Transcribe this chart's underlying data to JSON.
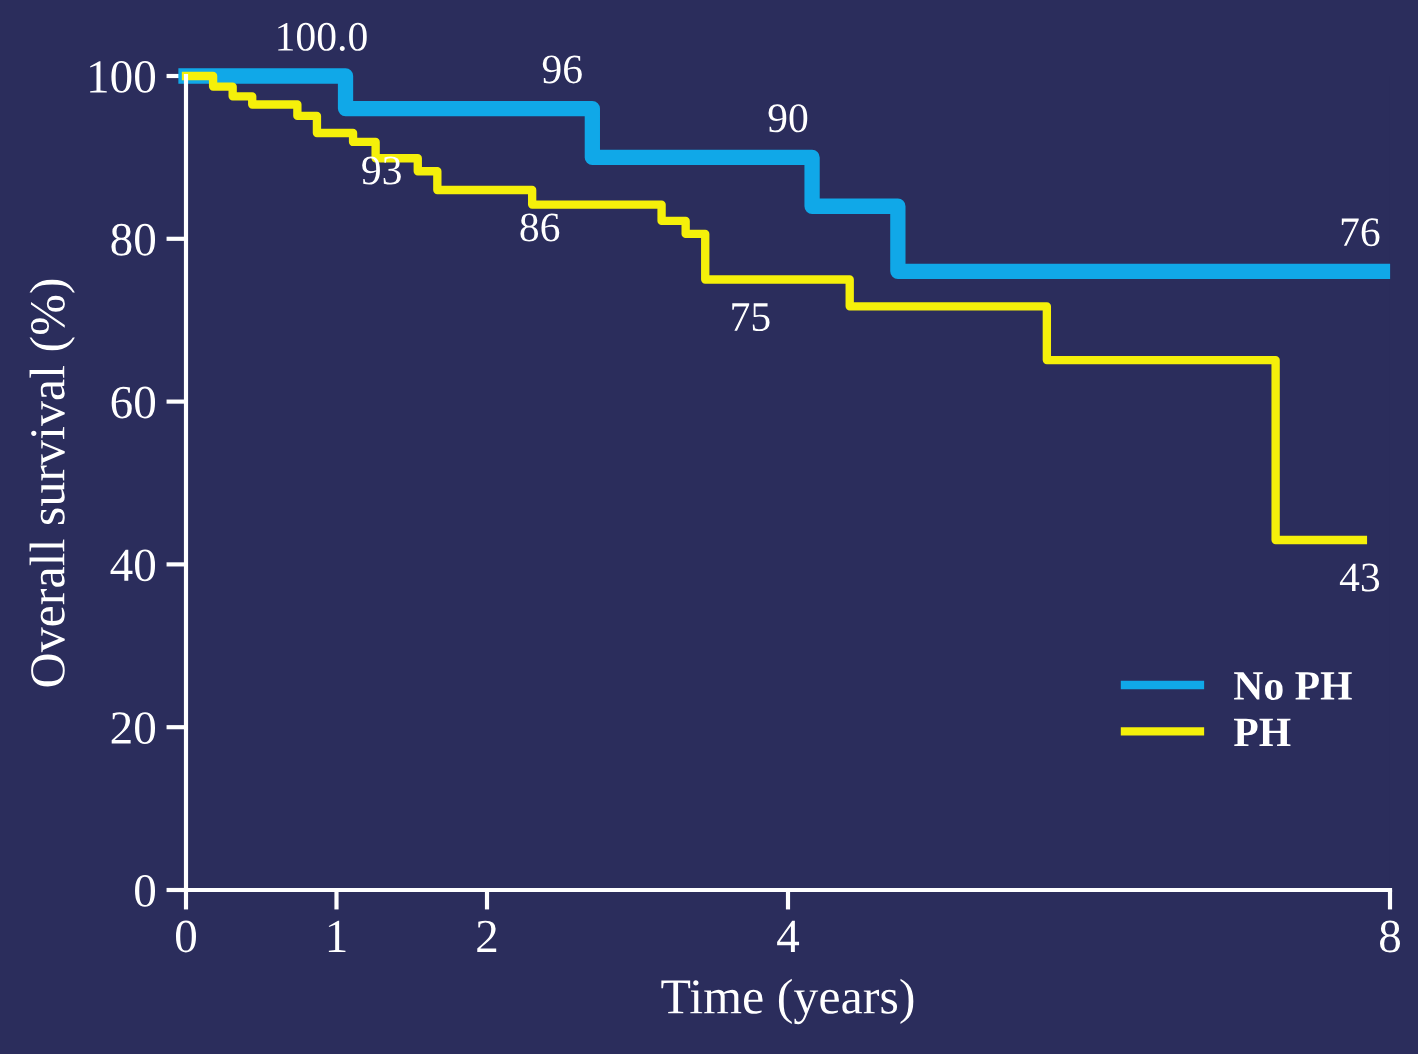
{
  "chart_data": {
    "type": "step",
    "xlabel": "Time (years)",
    "ylabel": "Overall survival (%)",
    "xlim": [
      0,
      8
    ],
    "xticks": [
      0,
      1,
      2,
      4,
      8
    ],
    "ylim": [
      0,
      100
    ],
    "yticks": [
      0,
      20,
      40,
      60,
      80,
      100
    ],
    "grid": false,
    "legend": "bottom right",
    "marker": "none",
    "line_style": "solid",
    "series": [
      {
        "name": "No PH",
        "color": "#10a8e8",
        "x": [
          0,
          1.06,
          2.7,
          4.16,
          4.73,
          7.95
        ],
        "values": [
          100,
          96,
          90,
          84,
          76,
          76
        ]
      },
      {
        "name": "PH",
        "color": "#f5f00a",
        "x": [
          0,
          0.18,
          0.31,
          0.44,
          0.74,
          0.87,
          1.11,
          1.26,
          1.54,
          1.67,
          2.3,
          3.16,
          3.32,
          3.45,
          4.41,
          5.72,
          7.24,
          7.82
        ],
        "values": [
          100,
          98.7,
          97.5,
          96.5,
          95.1,
          93,
          91.9,
          89.9,
          88.3,
          86,
          84.2,
          82.2,
          80.6,
          75,
          71.7,
          65.1,
          43,
          43
        ]
      }
    ],
    "annotations": [
      {
        "text": "100.0",
        "x": 0.9,
        "y": 100
      },
      {
        "text": "96",
        "x": 2.5,
        "y": 96
      },
      {
        "text": "90",
        "x": 4.0,
        "y": 90
      },
      {
        "text": "76",
        "x": 7.8,
        "y": 76
      },
      {
        "text": "93",
        "x": 1.3,
        "y": 93
      },
      {
        "text": "86",
        "x": 2.35,
        "y": 86
      },
      {
        "text": "75",
        "x": 3.75,
        "y": 75
      },
      {
        "text": "43",
        "x": 7.8,
        "y": 43
      }
    ]
  }
}
